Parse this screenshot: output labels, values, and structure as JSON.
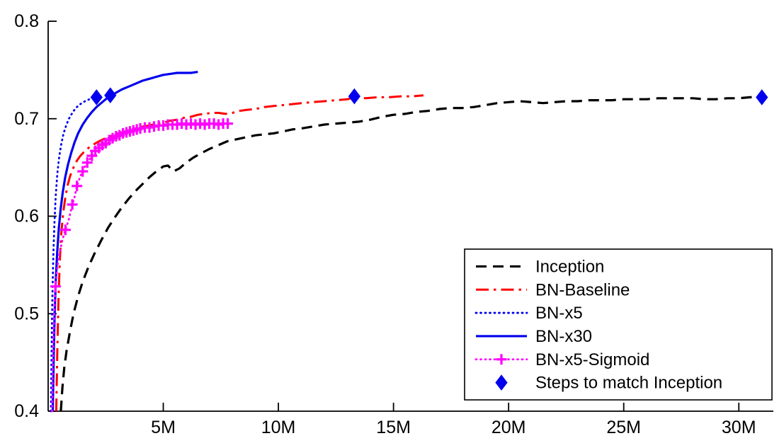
{
  "figure": {
    "background": "#ffffff",
    "description": "Validation accuracy vs number of training steps for Inception and Batch-Normalized variants"
  },
  "chart_data": {
    "type": "line",
    "title": "",
    "xlabel": "",
    "ylabel": "",
    "xlim": [
      0,
      31.5
    ],
    "ylim": [
      0.4,
      0.8
    ],
    "grid": false,
    "legend_position": "lower right",
    "x_unit": "millions of training steps",
    "xticks": [
      {
        "value": 5,
        "label": "5M"
      },
      {
        "value": 10,
        "label": "10M"
      },
      {
        "value": 15,
        "label": "15M"
      },
      {
        "value": 20,
        "label": "20M"
      },
      {
        "value": 25,
        "label": "25M"
      },
      {
        "value": 30,
        "label": "30M"
      }
    ],
    "yticks": [
      {
        "value": 0.4,
        "label": "0.4"
      },
      {
        "value": 0.5,
        "label": "0.5"
      },
      {
        "value": 0.6,
        "label": "0.6"
      },
      {
        "value": 0.7,
        "label": "0.7"
      },
      {
        "value": 0.8,
        "label": "0.8"
      }
    ],
    "axis_color": "#000000",
    "series": [
      {
        "name": "Inception",
        "style": "dashed",
        "color": "#000000",
        "marker": "none",
        "points": [
          [
            0.55,
            0.4
          ],
          [
            0.62,
            0.425
          ],
          [
            0.7,
            0.445
          ],
          [
            0.8,
            0.462
          ],
          [
            0.95,
            0.482
          ],
          [
            1.1,
            0.5
          ],
          [
            1.3,
            0.518
          ],
          [
            1.5,
            0.533
          ],
          [
            1.75,
            0.548
          ],
          [
            2.0,
            0.561
          ],
          [
            2.3,
            0.575
          ],
          [
            2.6,
            0.588
          ],
          [
            2.9,
            0.599
          ],
          [
            3.2,
            0.609
          ],
          [
            3.5,
            0.618
          ],
          [
            3.8,
            0.626
          ],
          [
            4.1,
            0.633
          ],
          [
            4.4,
            0.64
          ],
          [
            4.7,
            0.646
          ],
          [
            5.0,
            0.651
          ],
          [
            5.2,
            0.652
          ],
          [
            5.45,
            0.646
          ],
          [
            5.7,
            0.649
          ],
          [
            6.0,
            0.655
          ],
          [
            6.3,
            0.66
          ],
          [
            6.6,
            0.664
          ],
          [
            7.0,
            0.669
          ],
          [
            7.4,
            0.673
          ],
          [
            7.8,
            0.677
          ],
          [
            8.2,
            0.679
          ],
          [
            8.6,
            0.681
          ],
          [
            9.0,
            0.683
          ],
          [
            9.4,
            0.684
          ],
          [
            9.8,
            0.685
          ],
          [
            10.2,
            0.687
          ],
          [
            10.6,
            0.689
          ],
          [
            11.0,
            0.69
          ],
          [
            11.5,
            0.692
          ],
          [
            12.0,
            0.694
          ],
          [
            12.5,
            0.695
          ],
          [
            13.0,
            0.696
          ],
          [
            13.5,
            0.697
          ],
          [
            14.0,
            0.699
          ],
          [
            14.5,
            0.702
          ],
          [
            15.0,
            0.704
          ],
          [
            15.5,
            0.705
          ],
          [
            16.0,
            0.707
          ],
          [
            16.5,
            0.708
          ],
          [
            17.0,
            0.71
          ],
          [
            17.5,
            0.711
          ],
          [
            18.0,
            0.711
          ],
          [
            18.5,
            0.712
          ],
          [
            19.0,
            0.714
          ],
          [
            19.5,
            0.716
          ],
          [
            20.0,
            0.717
          ],
          [
            20.5,
            0.718
          ],
          [
            21.0,
            0.717
          ],
          [
            21.5,
            0.716
          ],
          [
            22.0,
            0.717
          ],
          [
            22.5,
            0.718
          ],
          [
            23.0,
            0.718
          ],
          [
            23.5,
            0.719
          ],
          [
            24.0,
            0.719
          ],
          [
            24.5,
            0.719
          ],
          [
            25.0,
            0.72
          ],
          [
            25.5,
            0.72
          ],
          [
            26.0,
            0.72
          ],
          [
            26.5,
            0.721
          ],
          [
            27.0,
            0.721
          ],
          [
            27.5,
            0.721
          ],
          [
            28.0,
            0.721
          ],
          [
            28.5,
            0.72
          ],
          [
            29.0,
            0.72
          ],
          [
            29.5,
            0.721
          ],
          [
            30.0,
            0.721
          ],
          [
            30.5,
            0.722
          ],
          [
            31.0,
            0.722
          ]
        ]
      },
      {
        "name": "BN-Baseline",
        "style": "dashdot",
        "color": "#ff0000",
        "marker": "none",
        "points": [
          [
            0.35,
            0.4
          ],
          [
            0.4,
            0.465
          ],
          [
            0.45,
            0.515
          ],
          [
            0.5,
            0.552
          ],
          [
            0.57,
            0.582
          ],
          [
            0.65,
            0.603
          ],
          [
            0.75,
            0.62
          ],
          [
            0.85,
            0.632
          ],
          [
            0.95,
            0.641
          ],
          [
            1.1,
            0.65
          ],
          [
            1.25,
            0.657
          ],
          [
            1.4,
            0.662
          ],
          [
            1.6,
            0.667
          ],
          [
            1.8,
            0.671
          ],
          [
            2.0,
            0.674
          ],
          [
            2.3,
            0.678
          ],
          [
            2.6,
            0.681
          ],
          [
            2.9,
            0.684
          ],
          [
            3.2,
            0.686
          ],
          [
            3.5,
            0.688
          ],
          [
            3.8,
            0.69
          ],
          [
            4.1,
            0.692
          ],
          [
            4.4,
            0.693
          ],
          [
            4.7,
            0.695
          ],
          [
            5.0,
            0.696
          ],
          [
            5.3,
            0.698
          ],
          [
            5.6,
            0.699
          ],
          [
            5.9,
            0.701
          ],
          [
            6.2,
            0.702
          ],
          [
            6.5,
            0.704
          ],
          [
            6.8,
            0.705
          ],
          [
            7.1,
            0.706
          ],
          [
            7.4,
            0.706
          ],
          [
            7.7,
            0.705
          ],
          [
            8.0,
            0.706
          ],
          [
            8.3,
            0.708
          ],
          [
            8.6,
            0.709
          ],
          [
            9.0,
            0.71
          ],
          [
            9.4,
            0.712
          ],
          [
            9.8,
            0.713
          ],
          [
            10.2,
            0.714
          ],
          [
            10.6,
            0.715
          ],
          [
            11.0,
            0.716
          ],
          [
            11.5,
            0.717
          ],
          [
            12.0,
            0.718
          ],
          [
            12.5,
            0.719
          ],
          [
            13.0,
            0.72
          ],
          [
            13.3,
            0.722
          ],
          [
            13.8,
            0.721
          ],
          [
            14.3,
            0.722
          ],
          [
            14.8,
            0.722
          ],
          [
            15.3,
            0.723
          ],
          [
            15.8,
            0.723
          ],
          [
            16.3,
            0.724
          ]
        ]
      },
      {
        "name": "BN-x5",
        "style": "dotted",
        "color": "#0000ee",
        "marker": "none",
        "points": [
          [
            0.12,
            0.4
          ],
          [
            0.15,
            0.465
          ],
          [
            0.18,
            0.515
          ],
          [
            0.22,
            0.558
          ],
          [
            0.27,
            0.592
          ],
          [
            0.33,
            0.621
          ],
          [
            0.4,
            0.644
          ],
          [
            0.48,
            0.661
          ],
          [
            0.57,
            0.674
          ],
          [
            0.67,
            0.685
          ],
          [
            0.78,
            0.693
          ],
          [
            0.9,
            0.7
          ],
          [
            1.05,
            0.706
          ],
          [
            1.2,
            0.711
          ],
          [
            1.4,
            0.715
          ],
          [
            1.6,
            0.718
          ],
          [
            1.8,
            0.72
          ],
          [
            2.0,
            0.721
          ],
          [
            2.15,
            0.722
          ]
        ]
      },
      {
        "name": "BN-x30",
        "style": "solid",
        "color": "#0000ee",
        "marker": "none",
        "points": [
          [
            0.2,
            0.4
          ],
          [
            0.24,
            0.455
          ],
          [
            0.28,
            0.498
          ],
          [
            0.33,
            0.533
          ],
          [
            0.39,
            0.562
          ],
          [
            0.46,
            0.587
          ],
          [
            0.54,
            0.607
          ],
          [
            0.63,
            0.624
          ],
          [
            0.74,
            0.64
          ],
          [
            0.86,
            0.653
          ],
          [
            1.0,
            0.665
          ],
          [
            1.15,
            0.676
          ],
          [
            1.3,
            0.685
          ],
          [
            1.5,
            0.694
          ],
          [
            1.7,
            0.701
          ],
          [
            1.9,
            0.707
          ],
          [
            2.1,
            0.712
          ],
          [
            2.3,
            0.716
          ],
          [
            2.5,
            0.72
          ],
          [
            2.7,
            0.723
          ],
          [
            2.9,
            0.726
          ],
          [
            3.2,
            0.73
          ],
          [
            3.5,
            0.733
          ],
          [
            3.8,
            0.736
          ],
          [
            4.1,
            0.739
          ],
          [
            4.4,
            0.741
          ],
          [
            4.7,
            0.743
          ],
          [
            5.0,
            0.745
          ],
          [
            5.3,
            0.746
          ],
          [
            5.6,
            0.747
          ],
          [
            5.9,
            0.747
          ],
          [
            6.2,
            0.747
          ],
          [
            6.5,
            0.748
          ]
        ]
      },
      {
        "name": "BN-x5-Sigmoid",
        "style": "dotted",
        "color": "#ff00ff",
        "marker": "plus",
        "points": [
          [
            0.17,
            0.4
          ],
          [
            0.2,
            0.445
          ],
          [
            0.24,
            0.483
          ],
          [
            0.28,
            0.511
          ],
          [
            0.32,
            0.528
          ],
          [
            0.4,
            0.548
          ],
          [
            0.5,
            0.563
          ],
          [
            0.62,
            0.576
          ],
          [
            0.75,
            0.586
          ],
          [
            0.9,
            0.597
          ],
          [
            1.05,
            0.612
          ],
          [
            1.15,
            0.62
          ],
          [
            1.25,
            0.631
          ],
          [
            1.4,
            0.641
          ],
          [
            1.55,
            0.649
          ],
          [
            1.7,
            0.655
          ],
          [
            1.85,
            0.66
          ],
          [
            2.0,
            0.665
          ],
          [
            2.15,
            0.669
          ],
          [
            2.3,
            0.672
          ],
          [
            2.45,
            0.674
          ],
          [
            2.6,
            0.677
          ],
          [
            2.75,
            0.679
          ],
          [
            2.9,
            0.681
          ],
          [
            3.05,
            0.683
          ],
          [
            3.2,
            0.684
          ],
          [
            3.35,
            0.685
          ],
          [
            3.5,
            0.687
          ],
          [
            3.65,
            0.688
          ],
          [
            3.8,
            0.689
          ],
          [
            3.95,
            0.689
          ],
          [
            4.1,
            0.69
          ],
          [
            4.3,
            0.691
          ],
          [
            4.5,
            0.692
          ],
          [
            4.7,
            0.692
          ],
          [
            4.9,
            0.693
          ],
          [
            5.1,
            0.693
          ],
          [
            5.3,
            0.694
          ],
          [
            5.5,
            0.694
          ],
          [
            5.7,
            0.694
          ],
          [
            5.9,
            0.695
          ],
          [
            6.1,
            0.694
          ],
          [
            6.3,
            0.695
          ],
          [
            6.5,
            0.694
          ],
          [
            6.7,
            0.695
          ],
          [
            6.9,
            0.694
          ],
          [
            7.1,
            0.695
          ],
          [
            7.3,
            0.695
          ],
          [
            7.5,
            0.694
          ],
          [
            7.7,
            0.695
          ],
          [
            7.9,
            0.695
          ]
        ],
        "marker_points": [
          [
            0.32,
            0.528
          ],
          [
            0.75,
            0.586
          ],
          [
            1.05,
            0.612
          ],
          [
            1.25,
            0.631
          ],
          [
            1.5,
            0.646
          ],
          [
            1.7,
            0.655
          ],
          [
            1.9,
            0.662
          ],
          [
            2.05,
            0.667
          ],
          [
            2.2,
            0.67
          ],
          [
            2.35,
            0.673
          ],
          [
            2.5,
            0.675
          ],
          [
            2.65,
            0.678
          ],
          [
            2.8,
            0.68
          ],
          [
            2.95,
            0.682
          ],
          [
            3.1,
            0.683
          ],
          [
            3.25,
            0.685
          ],
          [
            3.4,
            0.686
          ],
          [
            3.55,
            0.687
          ],
          [
            3.7,
            0.688
          ],
          [
            3.85,
            0.689
          ],
          [
            4.0,
            0.69
          ],
          [
            4.2,
            0.691
          ],
          [
            4.4,
            0.691
          ],
          [
            4.6,
            0.692
          ],
          [
            4.8,
            0.693
          ],
          [
            5.0,
            0.693
          ],
          [
            5.2,
            0.694
          ],
          [
            5.4,
            0.694
          ],
          [
            5.6,
            0.694
          ],
          [
            5.8,
            0.695
          ],
          [
            6.0,
            0.694
          ],
          [
            6.2,
            0.695
          ],
          [
            6.4,
            0.694
          ],
          [
            6.6,
            0.695
          ],
          [
            6.8,
            0.694
          ],
          [
            7.0,
            0.695
          ],
          [
            7.2,
            0.695
          ],
          [
            7.4,
            0.694
          ],
          [
            7.6,
            0.695
          ],
          [
            7.8,
            0.695
          ]
        ]
      },
      {
        "name": "Steps to match Inception",
        "style": "none",
        "color": "#0000ee",
        "marker": "diamond",
        "points": [
          [
            2.1,
            0.722
          ],
          [
            2.7,
            0.724
          ],
          [
            13.3,
            0.723
          ],
          [
            31.0,
            0.722
          ]
        ]
      }
    ],
    "legend": {
      "entries": [
        "Inception",
        "BN-Baseline",
        "BN-x5",
        "BN-x30",
        "BN-x5-Sigmoid",
        "Steps to match Inception"
      ],
      "border_color": "#000000",
      "background": "#ffffff"
    }
  }
}
